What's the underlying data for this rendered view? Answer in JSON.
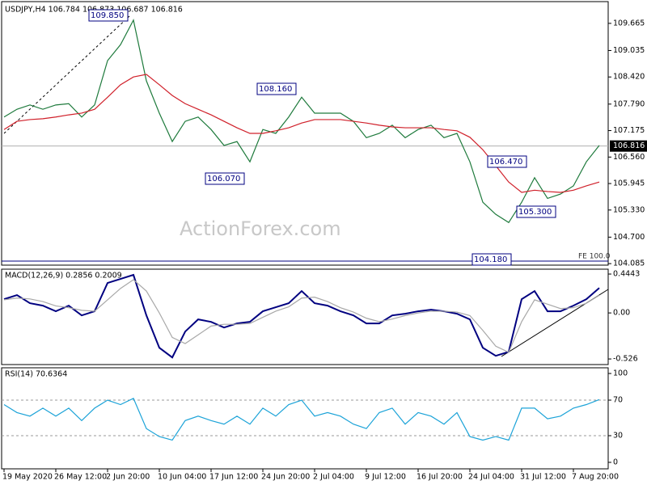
{
  "chart_data": [
    {
      "type": "line",
      "title": "USDJPY,H4  106.784 106.873 106.687 106.816",
      "categories": [
        "19 May 2020",
        null,
        null,
        null,
        "26 May 12:00",
        null,
        null,
        null,
        "2 Jun 20:00",
        null,
        null,
        null,
        "10 Jun 04:00",
        null,
        null,
        null,
        "17 Jun 12:00",
        null,
        null,
        null,
        "24 Jun 20:00",
        null,
        null,
        null,
        "2 Jul 04:00",
        null,
        null,
        null,
        "9 Jul 12:00",
        null,
        null,
        null,
        "16 Jul 20:00",
        null,
        null,
        null,
        "24 Jul 04:00",
        null,
        null,
        null,
        "31 Jul 12:00",
        null,
        null,
        null,
        "7 Aug 20:00",
        null,
        null
      ],
      "series": [
        {
          "color": "#1e7a3c",
          "values": [
            107.49,
            107.67,
            107.77,
            107.67,
            107.77,
            107.8,
            107.49,
            107.77,
            108.8,
            109.17,
            109.74,
            108.33,
            107.58,
            106.92,
            107.39,
            107.49,
            107.2,
            106.83,
            106.92,
            106.45,
            107.2,
            107.11,
            107.49,
            107.95,
            107.58,
            107.58,
            107.58,
            107.39,
            107.01,
            107.11,
            107.3,
            107.01,
            107.2,
            107.3,
            107.01,
            107.11,
            106.45,
            105.51,
            105.23,
            105.04,
            105.51,
            106.08,
            105.6,
            105.7,
            105.89,
            106.45,
            106.83
          ]
        },
        {
          "color": "#d0202a",
          "values": [
            107.2,
            107.39,
            107.43,
            107.45,
            107.49,
            107.54,
            107.58,
            107.67,
            107.95,
            108.24,
            108.42,
            108.48,
            108.24,
            107.99,
            107.8,
            107.67,
            107.54,
            107.39,
            107.24,
            107.11,
            107.11,
            107.17,
            107.24,
            107.35,
            107.43,
            107.43,
            107.43,
            107.39,
            107.35,
            107.3,
            107.26,
            107.24,
            107.24,
            107.24,
            107.2,
            107.17,
            107.02,
            106.73,
            106.36,
            105.98,
            105.74,
            105.79,
            105.76,
            105.74,
            105.79,
            105.89,
            105.98
          ]
        }
      ],
      "ylim": [
        104.05,
        110.17
      ],
      "yticks": [
        104.085,
        {
          "value": 104.7,
          "label": "104.700"
        },
        {
          "value": 105.33,
          "label": "105.330"
        },
        105.945,
        {
          "value": 106.56,
          "label": "106.560"
        },
        107.175,
        {
          "value": 107.79,
          "label": "107.790"
        },
        {
          "value": 108.42,
          "label": "108.420"
        },
        109.035,
        109.665
      ],
      "current": {
        "value": 106.816,
        "label": "106.816"
      },
      "annotations": [
        "109.850",
        "108.160",
        "106.070",
        "106.470",
        "105.300",
        "104.180",
        "FE 100.0"
      ],
      "watermark": "ActionForex.com"
    },
    {
      "type": "line",
      "title": "MACD(12,26,9) 0.2856 0.2009",
      "series": [
        {
          "color": "#000080",
          "values": [
            0.157,
            0.204,
            0.111,
            0.083,
            0.019,
            0.083,
            -0.028,
            0.019,
            0.342,
            0.389,
            0.435,
            -0.028,
            -0.398,
            -0.509,
            -0.213,
            -0.074,
            -0.102,
            -0.167,
            -0.12,
            -0.102,
            0.019,
            0.065,
            0.111,
            0.25,
            0.111,
            0.083,
            0.019,
            -0.028,
            -0.12,
            -0.12,
            -0.028,
            -0.009,
            0.019,
            0.037,
            0.019,
            -0.009,
            -0.074,
            -0.398,
            -0.49,
            -0.444,
            0.157,
            0.25,
            0.019,
            0.019,
            0.083,
            0.157,
            0.2856
          ]
        },
        {
          "color": "#a8a8a8",
          "values": [
            0.15,
            0.17,
            0.16,
            0.13,
            0.08,
            0.06,
            0.03,
            0.02,
            0.15,
            0.28,
            0.38,
            0.25,
            0.0,
            -0.28,
            -0.35,
            -0.25,
            -0.15,
            -0.13,
            -0.13,
            -0.12,
            -0.05,
            0.02,
            0.07,
            0.17,
            0.18,
            0.13,
            0.06,
            0.01,
            -0.06,
            -0.1,
            -0.07,
            -0.03,
            0.0,
            0.02,
            0.02,
            0.01,
            -0.03,
            -0.2,
            -0.38,
            -0.45,
            -0.1,
            0.15,
            0.1,
            0.05,
            0.06,
            0.11,
            0.2009
          ]
        }
      ],
      "ylim": [
        -0.59,
        0.5
      ],
      "yticks": [
        0.4443,
        {
          "value": 0,
          "label": "0.00"
        },
        -0.526
      ]
    },
    {
      "type": "line",
      "title": "RSI(14) 70.6364",
      "series": [
        {
          "color": "#1ca3d8",
          "values": [
            65,
            56,
            52,
            61,
            52,
            61,
            47,
            61,
            70,
            65,
            72,
            38,
            29,
            25,
            47,
            52,
            47,
            43,
            52,
            43,
            61,
            52,
            65,
            70,
            52,
            56,
            52,
            43,
            38,
            56,
            61,
            43,
            56,
            52,
            43,
            56,
            29,
            25,
            29,
            25,
            61,
            61,
            49,
            52,
            61,
            65,
            70.6364
          ]
        }
      ],
      "ylim": [
        -7.3,
        106.4
      ],
      "yticks": [
        0,
        30,
        70,
        100
      ],
      "levels": [
        70,
        30
      ]
    }
  ]
}
